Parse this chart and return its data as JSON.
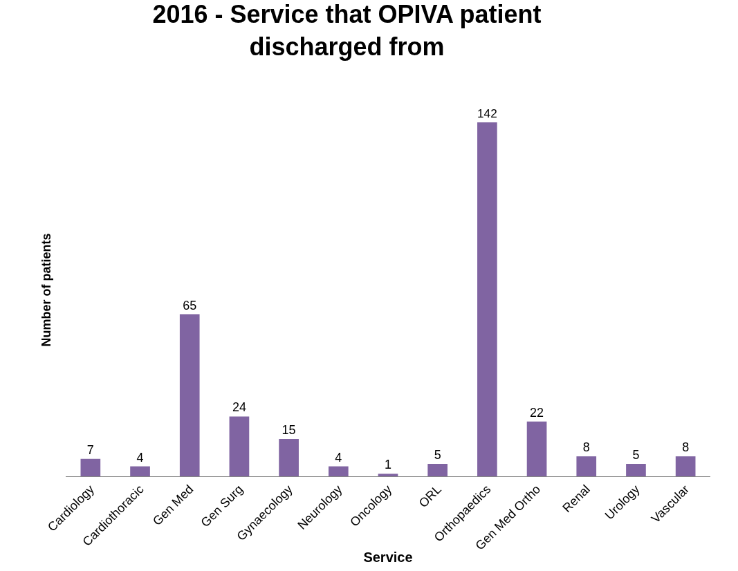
{
  "chart_data": {
    "type": "bar",
    "title": "2016 - Service that OPIVA patient discharged from",
    "xlabel": "Service",
    "ylabel": "Number of patients",
    "categories": [
      "Cardiology",
      "Cardiothoracic",
      "Gen Med",
      "Gen Surg",
      "Gynaecology",
      "Neurology",
      "Oncology",
      "ORL",
      "Orthopaedics",
      "Gen Med Ortho",
      "Renal",
      "Urology",
      "Vascular"
    ],
    "values": [
      7,
      4,
      65,
      24,
      15,
      4,
      1,
      5,
      142,
      22,
      8,
      5,
      8
    ],
    "color": "#8064a2",
    "data_labels": true,
    "tick_labels": "x",
    "legend": false
  }
}
